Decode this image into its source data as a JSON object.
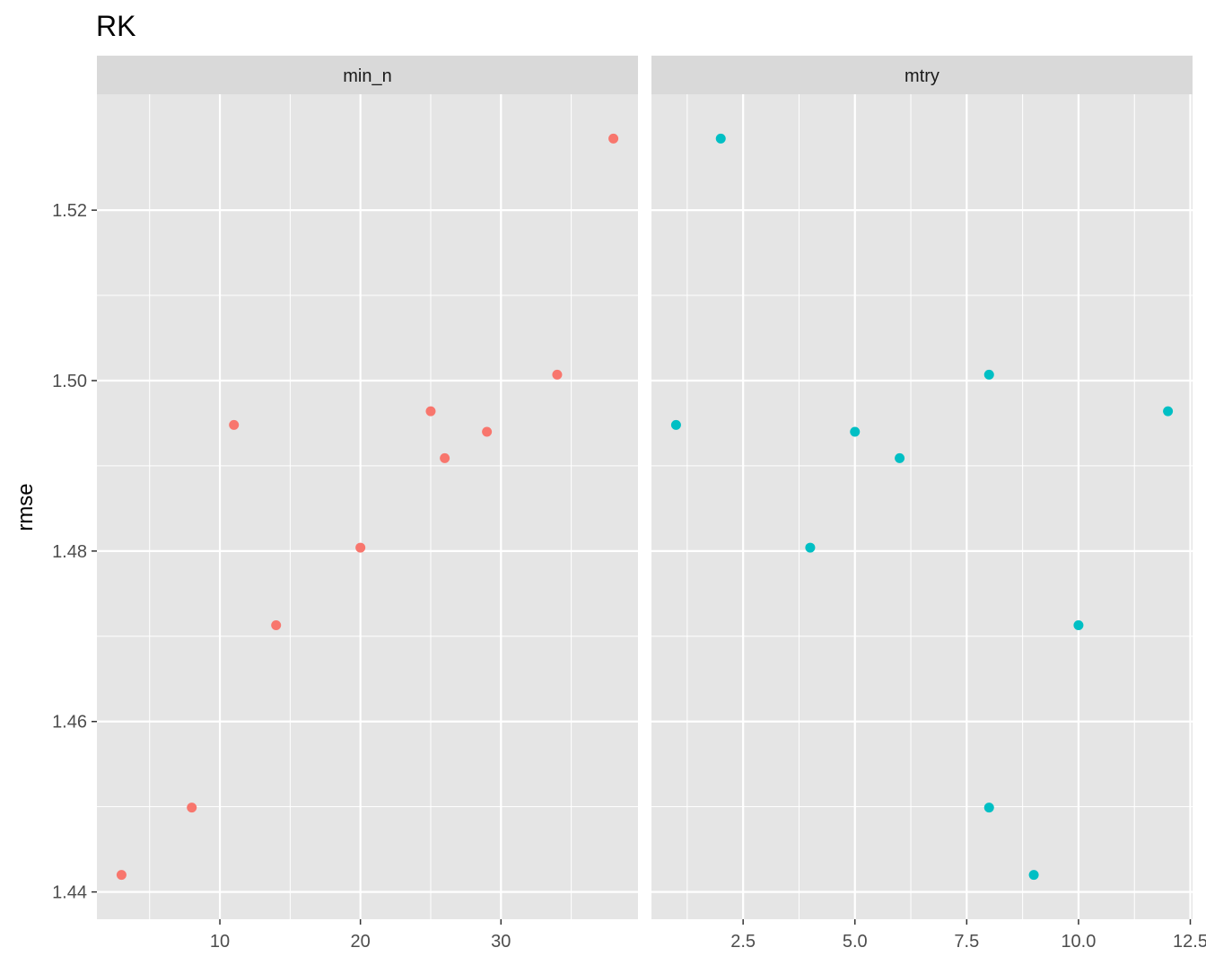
{
  "chart_data": {
    "type": "scatter",
    "title": "RK",
    "ylabel": "rmse",
    "xlabel": "",
    "ylim": [
      1.4368,
      1.5336
    ],
    "y_ticks": [
      1.44,
      1.46,
      1.48,
      1.5,
      1.52
    ],
    "y_tick_labels": [
      "1.44",
      "1.46",
      "1.48",
      "1.50",
      "1.52"
    ],
    "grid": true,
    "panel_background": "#E5E5E5",
    "strip_background": "#D9D9D9",
    "facets": [
      {
        "strip_label": "min_n",
        "color": "#F8766D",
        "xlim": [
          1.25,
          39.75
        ],
        "x_ticks": [
          10,
          20,
          30
        ],
        "x_tick_labels": [
          "10",
          "20",
          "30"
        ],
        "x": [
          3,
          8,
          11,
          14,
          20,
          25,
          26,
          29,
          34,
          38
        ],
        "y": [
          1.442,
          1.4499,
          1.4948,
          1.4713,
          1.4804,
          1.4964,
          1.4909,
          1.494,
          1.5007,
          1.5284
        ]
      },
      {
        "strip_label": "mtry",
        "color": "#00BFC4",
        "xlim": [
          0.45,
          12.55
        ],
        "x_ticks": [
          2.5,
          5.0,
          7.5,
          10.0,
          12.5
        ],
        "x_tick_labels": [
          "2.5",
          "5.0",
          "7.5",
          "10.0",
          "12.5"
        ],
        "x": [
          1,
          2,
          4,
          5,
          6,
          8,
          8,
          9,
          10,
          12
        ],
        "y": [
          1.4948,
          1.5284,
          1.4804,
          1.494,
          1.4909,
          1.5007,
          1.4499,
          1.442,
          1.4713,
          1.4964
        ]
      }
    ]
  }
}
